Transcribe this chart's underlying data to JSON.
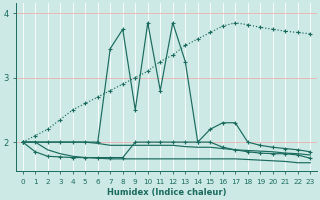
{
  "xlabel": "Humidex (Indice chaleur)",
  "xlim": [
    -0.5,
    23.5
  ],
  "ylim": [
    1.55,
    4.15
  ],
  "yticks": [
    2,
    3,
    4
  ],
  "xticks": [
    0,
    1,
    2,
    3,
    4,
    5,
    6,
    7,
    8,
    9,
    10,
    11,
    12,
    13,
    14,
    15,
    16,
    17,
    18,
    19,
    20,
    21,
    22,
    23
  ],
  "bg_color": "#cce9e5",
  "grid_color_major": "#e8b8b8",
  "grid_color_minor": "#ffffff",
  "line_color": "#1a6b5e",
  "series": [
    {
      "x": [
        0,
        1,
        2,
        3,
        4,
        5,
        6,
        7,
        8,
        9,
        10,
        11,
        12,
        13,
        14,
        15,
        16,
        17,
        18,
        19,
        20,
        21,
        22,
        23
      ],
      "y": [
        2.0,
        2.1,
        2.2,
        2.35,
        2.5,
        2.6,
        2.7,
        2.8,
        2.9,
        3.0,
        3.1,
        3.25,
        3.35,
        3.5,
        3.6,
        3.7,
        3.8,
        3.85,
        3.82,
        3.78,
        3.75,
        3.72,
        3.7,
        3.68
      ],
      "style": "dotted",
      "marker": "+"
    },
    {
      "x": [
        0,
        1,
        2,
        3,
        4,
        5,
        6,
        7,
        8,
        9,
        10,
        11,
        12,
        13,
        14,
        15,
        16,
        17,
        18,
        19,
        20,
        21,
        22,
        23
      ],
      "y": [
        2.0,
        2.0,
        2.0,
        2.0,
        2.0,
        2.0,
        2.0,
        3.45,
        3.75,
        2.5,
        3.85,
        2.8,
        3.85,
        3.25,
        2.0,
        2.2,
        2.3,
        2.3,
        2.0,
        1.95,
        1.92,
        1.9,
        1.88,
        1.85
      ],
      "style": "solid",
      "marker": "+"
    },
    {
      "x": [
        0,
        1,
        2,
        3,
        4,
        5,
        6,
        7,
        8,
        9,
        10,
        11,
        12,
        13,
        14,
        15,
        16,
        17,
        18,
        19,
        20,
        21,
        22,
        23
      ],
      "y": [
        2.0,
        2.0,
        2.0,
        2.0,
        2.0,
        2.0,
        1.98,
        1.95,
        1.95,
        1.95,
        1.95,
        1.95,
        1.95,
        1.93,
        1.92,
        1.92,
        1.9,
        1.88,
        1.87,
        1.86,
        1.85,
        1.83,
        1.82,
        1.8
      ],
      "style": "solid",
      "marker": null
    },
    {
      "x": [
        0,
        1,
        2,
        3,
        4,
        5,
        6,
        7,
        8,
        9,
        10,
        11,
        12,
        13,
        14,
        15,
        16,
        17,
        18,
        19,
        20,
        21,
        22,
        23
      ],
      "y": [
        2.0,
        2.0,
        1.88,
        1.82,
        1.78,
        1.76,
        1.75,
        1.74,
        1.74,
        1.74,
        1.74,
        1.74,
        1.74,
        1.74,
        1.74,
        1.74,
        1.74,
        1.74,
        1.73,
        1.72,
        1.71,
        1.7,
        1.68,
        1.68
      ],
      "style": "solid",
      "marker": null
    },
    {
      "x": [
        0,
        1,
        2,
        3,
        4,
        5,
        6,
        7,
        8,
        9,
        10,
        11,
        12,
        13,
        14,
        15,
        16,
        17,
        18,
        19,
        20,
        21,
        22,
        23
      ],
      "y": [
        2.0,
        1.85,
        1.78,
        1.77,
        1.76,
        1.76,
        1.76,
        1.76,
        1.76,
        2.0,
        2.0,
        2.0,
        2.0,
        2.0,
        2.0,
        2.0,
        1.92,
        1.88,
        1.85,
        1.83,
        1.82,
        1.82,
        1.8,
        1.75
      ],
      "style": "solid",
      "marker": "+"
    }
  ]
}
